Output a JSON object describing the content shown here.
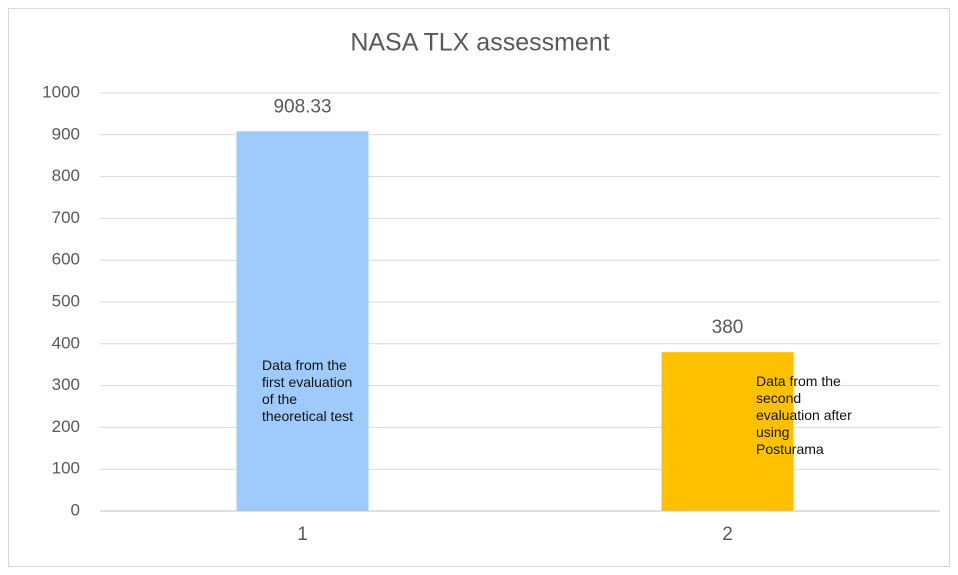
{
  "chart_data": {
    "type": "bar",
    "title": "NASA TLX assessment",
    "categories": [
      "1",
      "2"
    ],
    "values": [
      908.33,
      380
    ],
    "colors": [
      "#9ecbfb",
      "#ffc000"
    ],
    "annotations": [
      "Data from the first evaluation of the theoretical test",
      "Data from the second evaluation after using Posturama"
    ],
    "ylim": [
      0,
      1000
    ],
    "yticks": [
      0,
      100,
      200,
      300,
      400,
      500,
      600,
      700,
      800,
      900,
      1000
    ],
    "grid": true
  }
}
